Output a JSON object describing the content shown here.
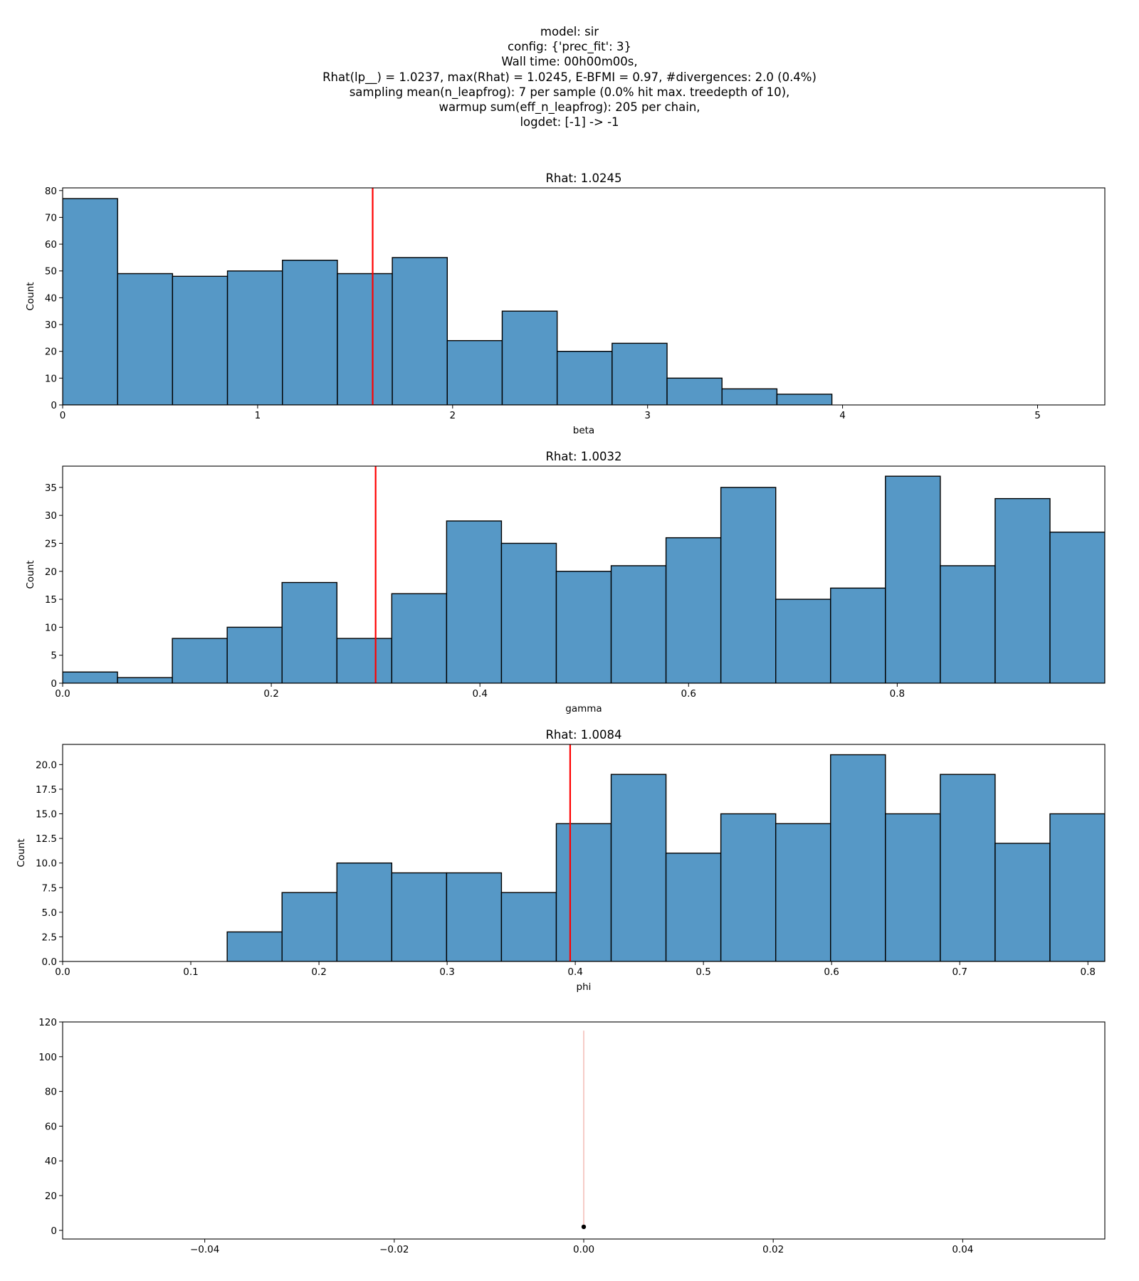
{
  "header_lines": [
    "model: sir",
    "config: {'prec_fit': 3}",
    "Wall time: 00h00m00s,",
    "Rhat(lp__) = 1.0237, max(Rhat) = 1.0245, E-BFMI = 0.97, #divergences: 2.0 (0.4%)",
    "sampling mean(n_leapfrog): 7 per sample (0.0% hit max. treedepth of 10),",
    "warmup sum(eff_n_leapfrog): 205 per chain,",
    "logdet: [-1] -> -1"
  ],
  "colors": {
    "bar_fill": "#5698c6",
    "bar_edge": "#000000",
    "marker": "#ff0000",
    "text": "#000000"
  },
  "chart_data": [
    {
      "type": "bar",
      "title": "Rhat: 1.0245",
      "xlabel": "beta",
      "ylabel": "Count",
      "bin_start": 0,
      "bin_width": 0.2818,
      "values": [
        77,
        49,
        48,
        50,
        54,
        49,
        55,
        24,
        35,
        20,
        23,
        10,
        6,
        4,
        0,
        0,
        0,
        0,
        0
      ],
      "xlim": [
        0,
        5.345
      ],
      "ylim": [
        0,
        81
      ],
      "xticks": [
        0,
        1,
        2,
        3,
        4,
        5
      ],
      "xtick_labels": [
        "0",
        "1",
        "2",
        "3",
        "4",
        "5"
      ],
      "yticks": [
        0,
        10,
        20,
        30,
        40,
        50,
        60,
        70,
        80
      ],
      "ytick_labels": [
        "0",
        "10",
        "20",
        "30",
        "40",
        "50",
        "60",
        "70",
        "80"
      ],
      "vline": 1.59
    },
    {
      "type": "bar",
      "title": "Rhat: 1.0032",
      "xlabel": "gamma",
      "ylabel": "Count",
      "bin_start": 0,
      "bin_width": 0.05258,
      "values": [
        2,
        1,
        8,
        10,
        18,
        8,
        16,
        29,
        25,
        20,
        21,
        26,
        35,
        15,
        17,
        37,
        21,
        33,
        27
      ],
      "xlim": [
        0,
        0.999
      ],
      "ylim": [
        0,
        38.8
      ],
      "xticks": [
        0,
        0.2,
        0.4,
        0.6,
        0.8
      ],
      "xtick_labels": [
        "0.0",
        "0.2",
        "0.4",
        "0.6",
        "0.8"
      ],
      "yticks": [
        0,
        5,
        10,
        15,
        20,
        25,
        30,
        35
      ],
      "ytick_labels": [
        "0",
        "5",
        "10",
        "15",
        "20",
        "25",
        "30",
        "35"
      ],
      "vline": 0.3
    },
    {
      "type": "bar",
      "title": "Rhat: 1.0084",
      "xlabel": "phi",
      "ylabel": "Count",
      "bin_start": 0,
      "bin_width": 0.0428,
      "values": [
        0,
        0,
        0,
        3,
        7,
        10,
        9,
        9,
        7,
        14,
        19,
        11,
        15,
        14,
        21,
        15,
        19,
        12,
        15
      ],
      "xlim": [
        0,
        0.8132
      ],
      "ylim": [
        0,
        22.05
      ],
      "xticks": [
        0,
        0.1,
        0.2,
        0.3,
        0.4,
        0.5,
        0.6,
        0.7,
        0.8
      ],
      "xtick_labels": [
        "0.0",
        "0.1",
        "0.2",
        "0.3",
        "0.4",
        "0.5",
        "0.6",
        "0.7",
        "0.8"
      ],
      "yticks": [
        0,
        2.5,
        5,
        7.5,
        10,
        12.5,
        15,
        17.5,
        20
      ],
      "ytick_labels": [
        "0.0",
        "2.5",
        "5.0",
        "7.5",
        "10.0",
        "12.5",
        "15.0",
        "17.5",
        "20.0"
      ],
      "vline": 0.396
    },
    {
      "type": "scatter",
      "title": "",
      "xlabel": "",
      "ylabel": "",
      "points": [
        {
          "x": 0.0,
          "y": 2
        }
      ],
      "segments": [
        {
          "x": 0.0,
          "y0": 3,
          "y1": 115
        }
      ],
      "xlim": [
        -0.055,
        0.055
      ],
      "ylim": [
        -5,
        120
      ],
      "xticks": [
        -0.04,
        -0.02,
        0,
        0.02,
        0.04
      ],
      "xtick_labels": [
        "−0.04",
        "−0.02",
        "0.00",
        "0.02",
        "0.04"
      ],
      "yticks": [
        0,
        20,
        40,
        60,
        80,
        100,
        120
      ],
      "ytick_labels": [
        "0",
        "20",
        "40",
        "60",
        "80",
        "100",
        "120"
      ]
    }
  ]
}
